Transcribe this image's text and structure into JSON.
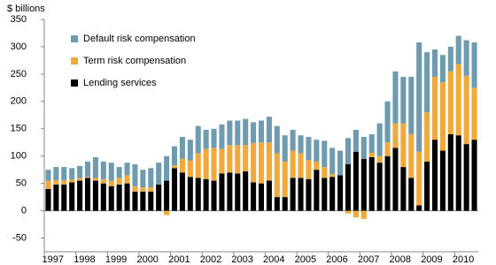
{
  "chart_data": {
    "type": "stacked_bar",
    "y_label": "$ billions",
    "categories": [
      "1997",
      null,
      null,
      null,
      "1998",
      null,
      null,
      null,
      "1999",
      null,
      null,
      null,
      "2000",
      null,
      null,
      null,
      "2001",
      null,
      null,
      null,
      "2002",
      null,
      null,
      null,
      "2003",
      null,
      null,
      null,
      "2004",
      null,
      null,
      null,
      "2005",
      null,
      null,
      null,
      "2006",
      null,
      null,
      null,
      "2007",
      null,
      null,
      null,
      "2008",
      null,
      null,
      null,
      "2009",
      null,
      null,
      null,
      "2010",
      null,
      null
    ],
    "series": [
      {
        "name": "Lending services",
        "color": "#000000",
        "values": [
          40,
          48,
          48,
          52,
          55,
          60,
          55,
          50,
          45,
          48,
          50,
          35,
          35,
          35,
          48,
          55,
          78,
          70,
          62,
          60,
          58,
          55,
          68,
          70,
          68,
          72,
          52,
          50,
          55,
          25,
          25,
          60,
          60,
          58,
          75,
          60,
          62,
          65,
          85,
          108,
          95,
          98,
          88,
          100,
          115,
          80,
          60,
          10,
          90,
          130,
          110,
          140,
          138,
          122,
          130
        ]
      },
      {
        "name": "Term risk compensation",
        "color": "#f2a93b",
        "values": [
          15,
          8,
          8,
          5,
          5,
          2,
          5,
          8,
          10,
          12,
          15,
          10,
          8,
          8,
          0,
          -8,
          5,
          25,
          30,
          45,
          55,
          60,
          45,
          50,
          52,
          48,
          72,
          75,
          70,
          80,
          65,
          50,
          45,
          35,
          15,
          20,
          5,
          0,
          -5,
          -12,
          -15,
          8,
          12,
          25,
          45,
          80,
          80,
          98,
          90,
          115,
          125,
          115,
          130,
          125,
          95
        ]
      },
      {
        "name": "Default risk compensation",
        "color": "#6f9bb0",
        "values": [
          20,
          24,
          24,
          21,
          22,
          28,
          38,
          32,
          33,
          20,
          23,
          40,
          32,
          35,
          40,
          45,
          35,
          40,
          38,
          50,
          35,
          35,
          45,
          45,
          45,
          48,
          38,
          40,
          47,
          50,
          48,
          38,
          33,
          42,
          40,
          48,
          48,
          45,
          48,
          40,
          40,
          34,
          60,
          75,
          95,
          85,
          105,
          200,
          110,
          50,
          50,
          45,
          52,
          65,
          83
        ]
      }
    ],
    "ylim": [
      -75,
      350
    ],
    "yticks": [
      -50,
      0,
      50,
      100,
      150,
      200,
      250,
      300,
      350
    ],
    "legend": "upper-left"
  }
}
